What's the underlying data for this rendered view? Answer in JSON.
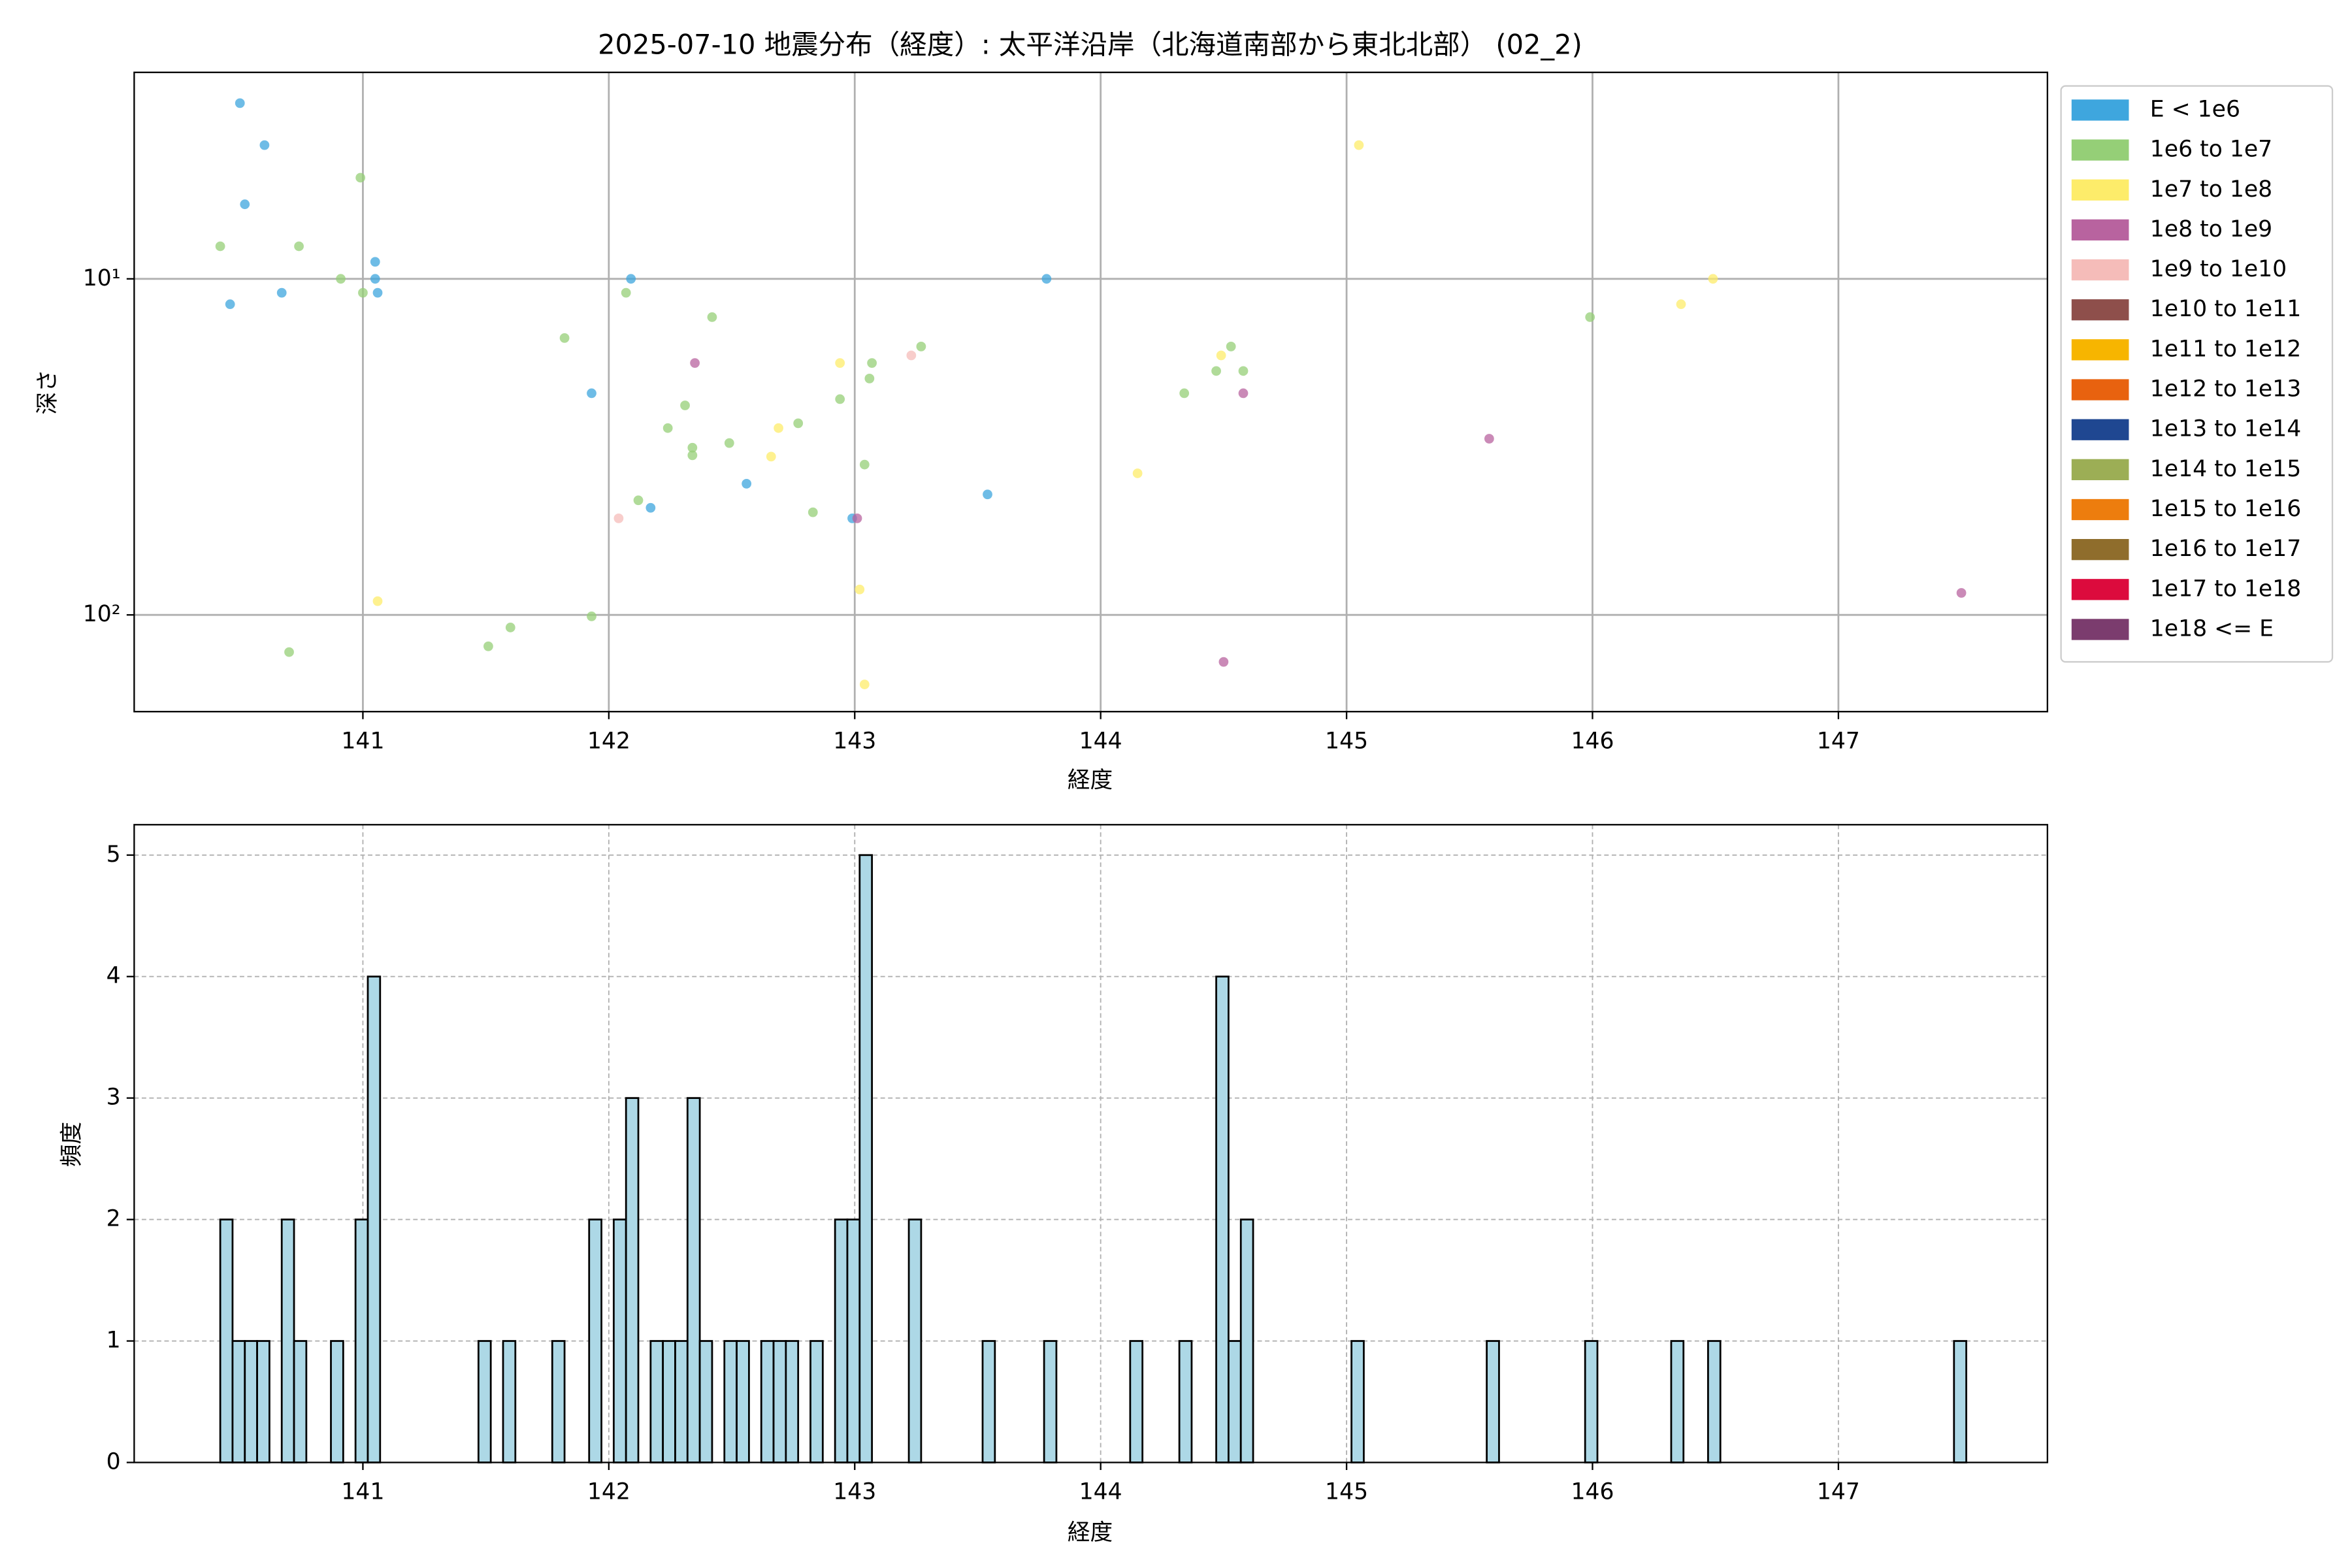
{
  "chart_data": [
    {
      "type": "scatter",
      "title": "2025-07-10 地震分布（経度）: 太平洋沿岸（北海道南部から東北北部） (02_2)",
      "x_label": "経度",
      "y_label": "深さ",
      "xlim": [
        140.07,
        147.85
      ],
      "xticks": [
        141,
        142,
        143,
        144,
        145,
        146,
        147
      ],
      "ylim": [
        2.43,
        194
      ],
      "y_log": true,
      "y_inverted": true,
      "yticks": [
        {
          "value": 10,
          "label": "10¹"
        },
        {
          "value": 100,
          "label": "10²"
        }
      ],
      "grid": true,
      "legend": "outside right",
      "series": [
        {
          "name": "E < 1e6",
          "color": "#3ea6de",
          "x": [
            140.5,
            140.6,
            140.52,
            140.46,
            140.67,
            141.05,
            141.05,
            141.06,
            142.09,
            141.93,
            142.17,
            142.56,
            142.99,
            143.54,
            143.78
          ],
          "values": [
            3.0,
            4.0,
            6.0,
            11.9,
            11.0,
            8.9,
            10,
            11,
            10,
            21.9,
            48,
            40.7,
            51.6,
            43.8,
            10
          ]
        },
        {
          "name": "1e6 to 1e7",
          "color": "#95cf77",
          "x": [
            140.42,
            140.99,
            140.74,
            140.91,
            141.0,
            140.7,
            141.82,
            142.07,
            142.42,
            141.6,
            141.51,
            141.93,
            142.12,
            142.24,
            142.31,
            142.34,
            142.34,
            142.49,
            142.77,
            142.83,
            142.94,
            143.04,
            143.07,
            143.06,
            143.27,
            144.34,
            144.47,
            144.53,
            144.58,
            145.99
          ],
          "values": [
            8.0,
            5.0,
            8.0,
            10,
            11,
            129,
            15,
            11,
            13,
            109,
            124,
            101,
            45.6,
            27.8,
            23.8,
            31.8,
            33.5,
            30.8,
            26.9,
            49.5,
            22.8,
            35.7,
            17.8,
            19.8,
            15.9,
            21.9,
            18.8,
            15.9,
            18.8,
            13
          ]
        },
        {
          "name": "1e7 to 1e8",
          "color": "#fdec6a",
          "x": [
            141.06,
            142.69,
            142.66,
            142.94,
            143.02,
            143.04,
            144.15,
            144.49,
            145.05,
            146.36,
            146.49
          ],
          "values": [
            91,
            27.8,
            33.8,
            17.8,
            84,
            161,
            37.9,
            16.9,
            4.0,
            11.9,
            10
          ]
        },
        {
          "name": "1e8 to 1e9",
          "color": "#b8639f",
          "x": [
            142.35,
            143.01,
            144.58,
            145.58,
            144.5,
            147.5
          ],
          "values": [
            17.8,
            51.6,
            21.9,
            29.9,
            138,
            86
          ]
        },
        {
          "name": "1e9 to 1e10",
          "color": "#f5bcb9",
          "x": [
            142.04,
            143.23
          ],
          "values": [
            51.6,
            16.9
          ]
        },
        {
          "name": "1e10 to 1e11",
          "color": "#8e4f4b",
          "x": [],
          "values": []
        },
        {
          "name": "1e11 to 1e12",
          "color": "#f7b500",
          "x": [],
          "values": []
        },
        {
          "name": "1e12 to 1e13",
          "color": "#e8620f",
          "x": [],
          "values": []
        },
        {
          "name": "1e13 to 1e14",
          "color": "#1f4791",
          "x": [],
          "values": []
        },
        {
          "name": "1e14 to 1e15",
          "color": "#9cae55",
          "x": [],
          "values": []
        },
        {
          "name": "1e15 to 1e16",
          "color": "#ed7d0e",
          "x": [],
          "values": []
        },
        {
          "name": "1e16 to 1e17",
          "color": "#8f6d2c",
          "x": [],
          "values": []
        },
        {
          "name": "1e17 to 1e18",
          "color": "#dc0b3d",
          "x": [],
          "values": []
        },
        {
          "name": "1e18 <= E",
          "color": "#7b3c6e",
          "x": [],
          "values": []
        }
      ]
    },
    {
      "type": "histogram",
      "x_label": "経度",
      "y_label": "頻度",
      "xlim": [
        140.07,
        147.85
      ],
      "xticks": [
        141,
        142,
        143,
        144,
        145,
        146,
        147
      ],
      "ylim": [
        0,
        5.25
      ],
      "yticks": [
        0,
        1,
        2,
        3,
        4,
        5
      ],
      "grid": true,
      "color": "#add8e6",
      "edgecolor": "#000000",
      "bins": [
        140.42,
        140.47,
        140.52,
        140.57,
        140.62,
        140.67,
        140.72,
        140.77,
        140.82,
        140.87,
        140.92,
        140.97,
        141.02,
        141.07,
        141.12,
        141.17,
        141.22,
        141.27,
        141.32,
        141.37,
        141.42,
        141.47,
        141.52,
        141.57,
        141.62,
        141.67,
        141.72,
        141.77,
        141.82,
        141.87,
        141.92,
        141.97,
        142.02,
        142.07,
        142.12,
        142.17,
        142.22,
        142.27,
        142.32,
        142.37,
        142.42,
        142.47,
        142.52,
        142.57,
        142.62,
        142.67,
        142.72,
        142.77,
        142.82,
        142.87,
        142.92,
        142.97,
        143.02,
        143.07,
        143.12,
        143.17,
        143.22,
        143.27,
        143.32,
        143.37,
        143.42,
        143.47,
        143.52,
        143.57,
        143.62,
        143.67,
        143.72,
        143.77,
        143.82,
        143.87,
        143.92,
        143.97,
        144.02,
        144.07,
        144.12,
        144.17,
        144.22,
        144.27,
        144.32,
        144.37,
        144.42,
        144.47,
        144.52,
        144.57,
        144.62,
        144.67,
        144.72,
        144.77,
        144.82,
        144.87,
        144.92,
        144.97,
        145.02,
        145.07,
        145.12,
        145.17,
        145.22,
        145.27,
        145.32,
        145.37,
        145.42,
        145.47,
        145.52,
        145.57,
        145.62,
        145.67,
        145.72,
        145.77,
        145.82,
        145.87,
        145.92,
        145.97,
        146.02,
        146.07,
        146.12,
        146.17,
        146.22,
        146.27,
        146.32,
        146.37,
        146.42,
        146.47,
        146.52,
        146.57,
        146.62,
        146.67,
        146.72,
        146.77,
        146.82,
        146.87,
        146.92,
        146.97,
        147.02,
        147.07,
        147.12,
        147.17,
        147.22,
        147.27,
        147.32,
        147.37,
        147.42,
        147.47,
        147.52
      ],
      "counts": [
        2,
        1,
        1,
        1,
        0,
        2,
        1,
        0,
        0,
        1,
        0,
        2,
        4,
        0,
        0,
        0,
        0,
        0,
        0,
        0,
        0,
        1,
        0,
        1,
        0,
        0,
        0,
        1,
        0,
        0,
        2,
        0,
        2,
        3,
        0,
        1,
        1,
        1,
        3,
        1,
        0,
        1,
        1,
        0,
        1,
        1,
        1,
        0,
        1,
        0,
        2,
        2,
        5,
        0,
        0,
        0,
        2,
        0,
        0,
        0,
        0,
        0,
        1,
        0,
        0,
        0,
        0,
        1,
        0,
        0,
        0,
        0,
        0,
        0,
        1,
        0,
        0,
        0,
        1,
        0,
        0,
        4,
        1,
        2,
        0,
        0,
        0,
        0,
        0,
        0,
        0,
        0,
        1,
        0,
        0,
        0,
        0,
        0,
        0,
        0,
        0,
        0,
        0,
        1,
        0,
        0,
        0,
        0,
        0,
        0,
        0,
        1,
        0,
        0,
        0,
        0,
        0,
        0,
        1,
        0,
        0,
        1,
        0,
        0,
        0,
        0,
        0,
        0,
        0,
        0,
        0,
        0,
        0,
        0,
        0,
        0,
        0,
        0,
        0,
        0,
        0,
        1
      ]
    }
  ]
}
